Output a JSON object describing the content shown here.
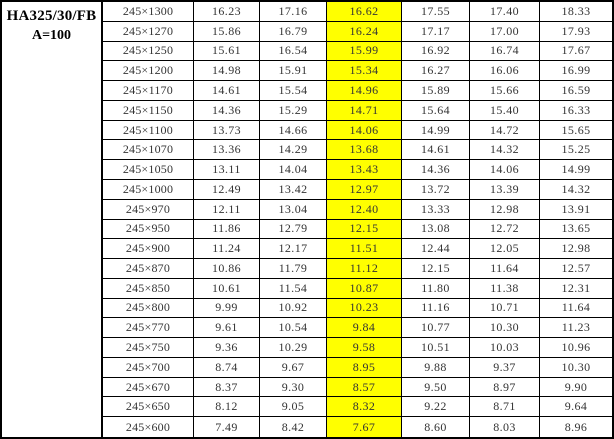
{
  "header": {
    "model": "HA325/30/FB",
    "spec": "A=100"
  },
  "colors": {
    "highlight": "#ffff00",
    "border": "#000000",
    "text": "#343434",
    "background": "#ffffff"
  },
  "table": {
    "highlight_value_index": 2,
    "rows": [
      {
        "size": "245×1300",
        "values": [
          "16.23",
          "17.16",
          "16.62",
          "17.55",
          "17.40",
          "18.33"
        ]
      },
      {
        "size": "245×1270",
        "values": [
          "15.86",
          "16.79",
          "16.24",
          "17.17",
          "17.00",
          "17.93"
        ]
      },
      {
        "size": "245×1250",
        "values": [
          "15.61",
          "16.54",
          "15.99",
          "16.92",
          "16.74",
          "17.67"
        ]
      },
      {
        "size": "245×1200",
        "values": [
          "14.98",
          "15.91",
          "15.34",
          "16.27",
          "16.06",
          "16.99"
        ]
      },
      {
        "size": "245×1170",
        "values": [
          "14.61",
          "15.54",
          "14.96",
          "15.89",
          "15.66",
          "16.59"
        ]
      },
      {
        "size": "245×1150",
        "values": [
          "14.36",
          "15.29",
          "14.71",
          "15.64",
          "15.40",
          "16.33"
        ]
      },
      {
        "size": "245×1100",
        "values": [
          "13.73",
          "14.66",
          "14.06",
          "14.99",
          "14.72",
          "15.65"
        ]
      },
      {
        "size": "245×1070",
        "values": [
          "13.36",
          "14.29",
          "13.68",
          "14.61",
          "14.32",
          "15.25"
        ]
      },
      {
        "size": "245×1050",
        "values": [
          "13.11",
          "14.04",
          "13.43",
          "14.36",
          "14.06",
          "14.99"
        ]
      },
      {
        "size": "245×1000",
        "values": [
          "12.49",
          "13.42",
          "12.97",
          "13.72",
          "13.39",
          "14.32"
        ]
      },
      {
        "size": "245×970",
        "values": [
          "12.11",
          "13.04",
          "12.40",
          "13.33",
          "12.98",
          "13.91"
        ]
      },
      {
        "size": "245×950",
        "values": [
          "11.86",
          "12.79",
          "12.15",
          "13.08",
          "12.72",
          "13.65"
        ]
      },
      {
        "size": "245×900",
        "values": [
          "11.24",
          "12.17",
          "11.51",
          "12.44",
          "12.05",
          "12.98"
        ]
      },
      {
        "size": "245×870",
        "values": [
          "10.86",
          "11.79",
          "11.12",
          "12.15",
          "11.64",
          "12.57"
        ]
      },
      {
        "size": "245×850",
        "values": [
          "10.61",
          "11.54",
          "10.87",
          "11.80",
          "11.38",
          "12.31"
        ]
      },
      {
        "size": "245×800",
        "values": [
          "9.99",
          "10.92",
          "10.23",
          "11.16",
          "10.71",
          "11.64"
        ]
      },
      {
        "size": "245×770",
        "values": [
          "9.61",
          "10.54",
          "9.84",
          "10.77",
          "10.30",
          "11.23"
        ]
      },
      {
        "size": "245×750",
        "values": [
          "9.36",
          "10.29",
          "9.58",
          "10.51",
          "10.03",
          "10.96"
        ]
      },
      {
        "size": "245×700",
        "values": [
          "8.74",
          "9.67",
          "8.95",
          "9.88",
          "9.37",
          "10.30"
        ]
      },
      {
        "size": "245×670",
        "values": [
          "8.37",
          "9.30",
          "8.57",
          "9.50",
          "8.97",
          "9.90"
        ]
      },
      {
        "size": "245×650",
        "values": [
          "8.12",
          "9.05",
          "8.32",
          "9.22",
          "8.71",
          "9.64"
        ]
      },
      {
        "size": "245×600",
        "values": [
          "7.49",
          "8.42",
          "7.67",
          "8.60",
          "8.03",
          "8.96"
        ]
      }
    ]
  }
}
